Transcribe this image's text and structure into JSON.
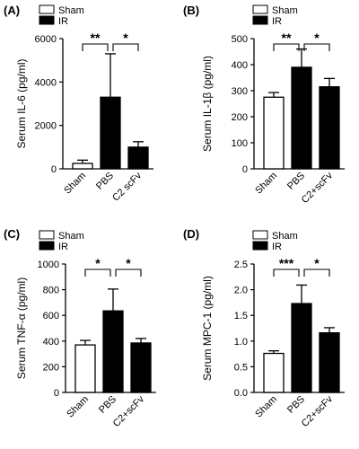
{
  "chart_data": [
    {
      "type": "bar",
      "panel": "(A)",
      "ylabel": "Serum IL-6 (pg/ml)",
      "ylim": [
        0,
        6000
      ],
      "yticks": [
        0,
        2000,
        4000,
        6000
      ],
      "categories": [
        "Sham",
        "PBS",
        "C2 scFv"
      ],
      "values": [
        250,
        3300,
        1000
      ],
      "errors": [
        150,
        2000,
        250
      ],
      "fills": [
        "#ffffff",
        "#000000",
        "#000000"
      ],
      "legend": [
        "Sham",
        "IR"
      ],
      "significance": [
        {
          "from": 0,
          "to": 1,
          "label": "**"
        },
        {
          "from": 1,
          "to": 2,
          "label": "*"
        }
      ]
    },
    {
      "type": "bar",
      "panel": "(B)",
      "ylabel": "Serum IL-1β (pg/ml)",
      "ylim": [
        0,
        500
      ],
      "yticks": [
        0,
        100,
        200,
        300,
        400,
        500
      ],
      "categories": [
        "Sham",
        "PBS",
        "C2+scFv"
      ],
      "values": [
        275,
        390,
        315
      ],
      "errors": [
        18,
        70,
        32
      ],
      "fills": [
        "#ffffff",
        "#000000",
        "#000000"
      ],
      "legend": [
        "Sham",
        "IR"
      ],
      "significance": [
        {
          "from": 0,
          "to": 1,
          "label": "**"
        },
        {
          "from": 1,
          "to": 2,
          "label": "*"
        }
      ]
    },
    {
      "type": "bar",
      "panel": "(C)",
      "ylabel": "Serum TNF-α (pg/ml)",
      "ylim": [
        0,
        1000
      ],
      "yticks": [
        0,
        200,
        400,
        600,
        800,
        1000
      ],
      "categories": [
        "Sham",
        "PBS",
        "C2+scFv"
      ],
      "values": [
        370,
        635,
        385
      ],
      "errors": [
        35,
        170,
        35
      ],
      "fills": [
        "#ffffff",
        "#000000",
        "#000000"
      ],
      "legend": [
        "Sham",
        "IR"
      ],
      "significance": [
        {
          "from": 0,
          "to": 1,
          "label": "*"
        },
        {
          "from": 1,
          "to": 2,
          "label": "*"
        }
      ]
    },
    {
      "type": "bar",
      "panel": "(D)",
      "ylabel": "Serum MPC-1 (pg/ml)",
      "ylim": [
        0,
        2.5
      ],
      "yticks": [
        0.0,
        0.5,
        1.0,
        1.5,
        2.0,
        2.5
      ],
      "ytick_labels": [
        "0.0",
        "0.5",
        "1.0",
        "1.5",
        "2.0",
        "2.5"
      ],
      "categories": [
        "Sham",
        "PBS",
        "C2+scFv"
      ],
      "values": [
        0.76,
        1.73,
        1.16
      ],
      "errors": [
        0.05,
        0.36,
        0.1
      ],
      "fills": [
        "#ffffff",
        "#000000",
        "#000000"
      ],
      "legend": [
        "Sham",
        "IR"
      ],
      "significance": [
        {
          "from": 0,
          "to": 1,
          "label": "***"
        },
        {
          "from": 1,
          "to": 2,
          "label": "*"
        }
      ]
    }
  ]
}
